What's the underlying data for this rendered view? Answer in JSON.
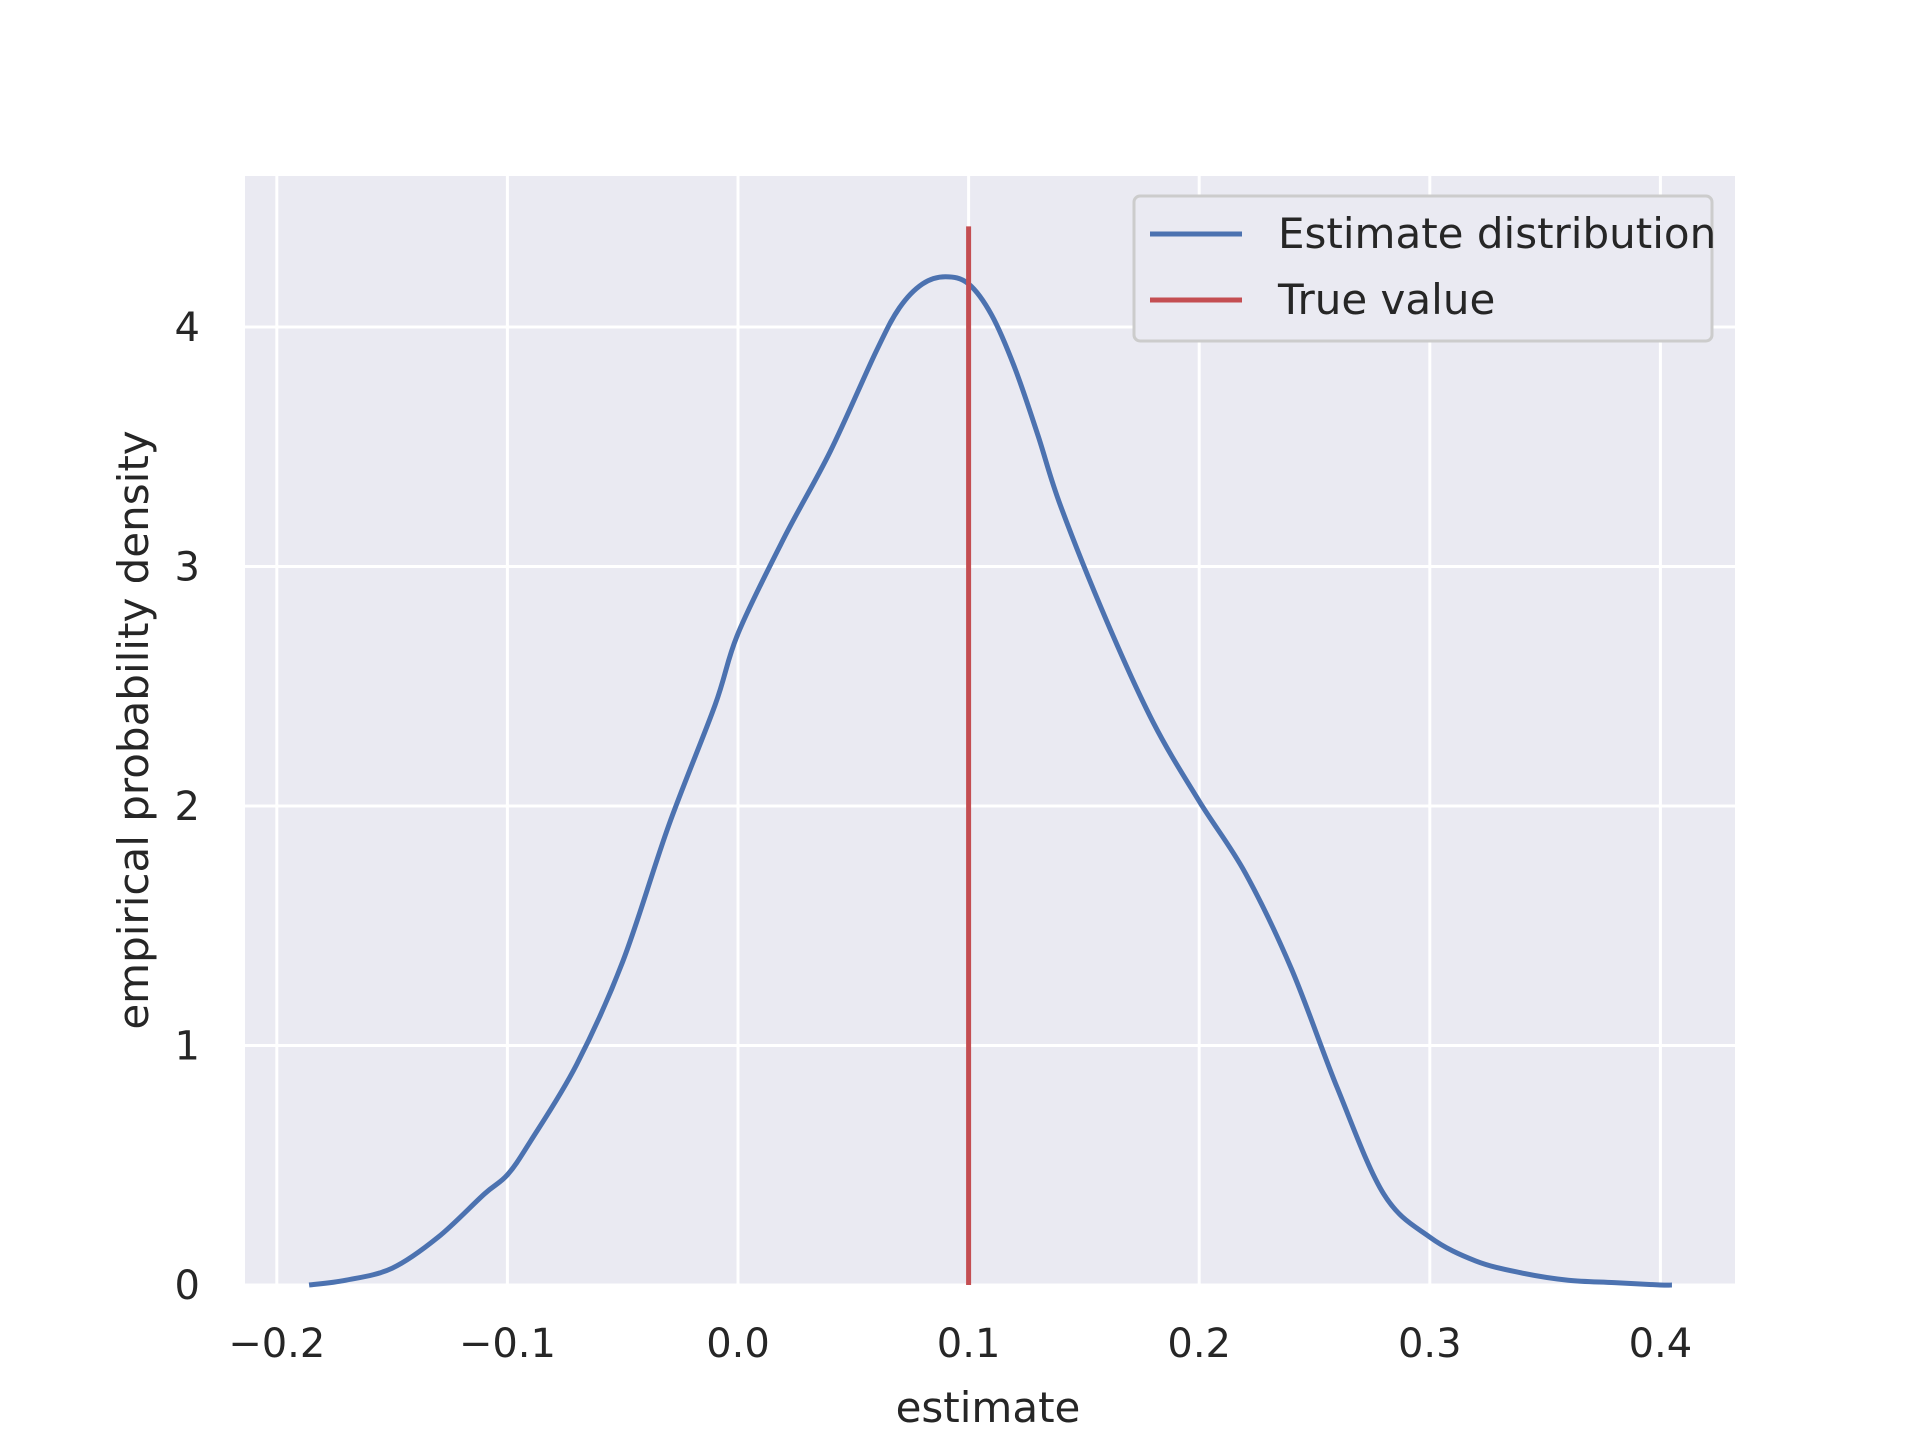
{
  "chart_data": {
    "type": "line",
    "title": "",
    "xlabel": "estimate",
    "ylabel": "empirical probability density",
    "xlim": [
      -0.2,
      0.43
    ],
    "ylim": [
      0,
      4.62
    ],
    "xticks": [
      -0.2,
      -0.1,
      0.0,
      0.1,
      0.2,
      0.3,
      0.4
    ],
    "xtick_labels": [
      "−0.2",
      "−0.1",
      "0.0",
      "0.1",
      "0.2",
      "0.3",
      "0.4"
    ],
    "yticks": [
      0,
      1,
      2,
      3,
      4
    ],
    "ytick_labels": [
      "0",
      "1",
      "2",
      "3",
      "4"
    ],
    "grid": true,
    "legend_position": "top-right",
    "series": [
      {
        "name": "Estimate distribution",
        "color": "#4c72b0",
        "kind": "line",
        "x": [
          -0.186,
          -0.17,
          -0.15,
          -0.13,
          -0.11,
          -0.1,
          -0.09,
          -0.07,
          -0.05,
          -0.03,
          -0.01,
          0.0,
          0.02,
          0.04,
          0.06,
          0.07,
          0.08,
          0.09,
          0.1,
          0.11,
          0.12,
          0.13,
          0.14,
          0.16,
          0.18,
          0.2,
          0.22,
          0.24,
          0.26,
          0.28,
          0.3,
          0.32,
          0.34,
          0.36,
          0.38,
          0.4,
          0.405
        ],
        "y": [
          0.0,
          0.02,
          0.07,
          0.2,
          0.38,
          0.46,
          0.6,
          0.92,
          1.35,
          1.92,
          2.42,
          2.72,
          3.12,
          3.48,
          3.9,
          4.08,
          4.18,
          4.21,
          4.18,
          4.05,
          3.83,
          3.55,
          3.25,
          2.77,
          2.35,
          2.02,
          1.72,
          1.32,
          0.82,
          0.38,
          0.2,
          0.1,
          0.05,
          0.02,
          0.01,
          0.0,
          0.0
        ]
      },
      {
        "name": "True value",
        "color": "#c44e52",
        "kind": "vline",
        "x": 0.1,
        "y_range": [
          0,
          4.42
        ]
      }
    ]
  },
  "style": {
    "plot_background": "#eaeaf2",
    "grid_color": "#ffffff",
    "text_color": "#262626"
  }
}
